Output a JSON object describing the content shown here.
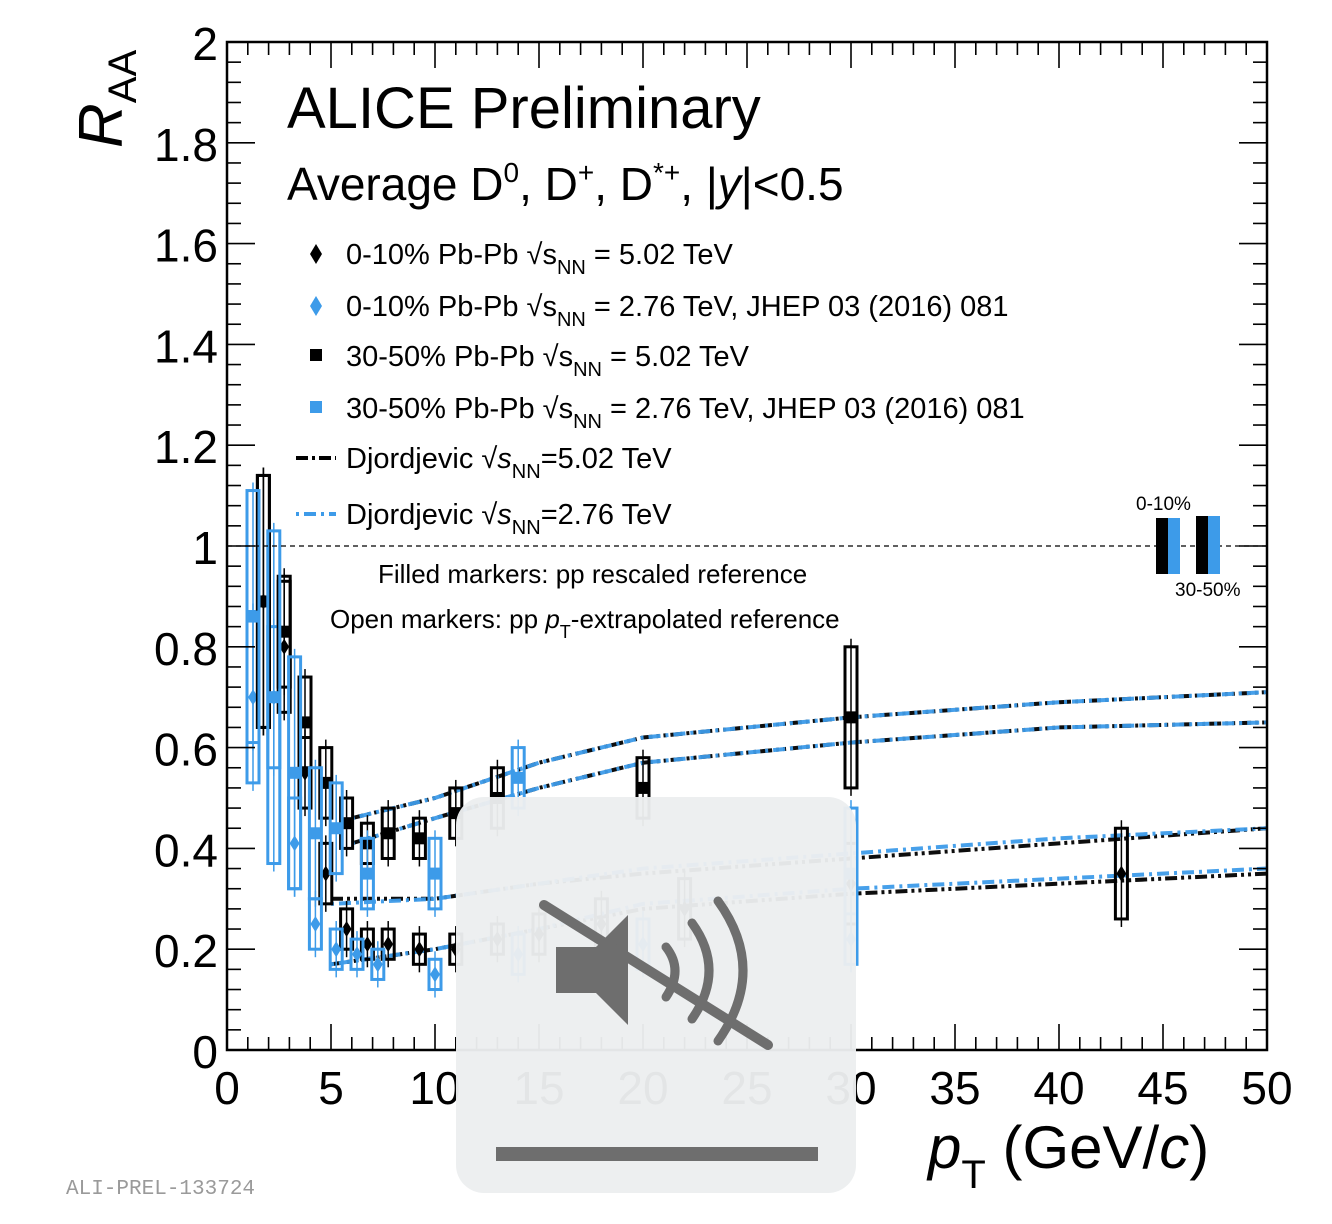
{
  "chart_data": {
    "type": "scatter",
    "title": "ALICE Preliminary",
    "subtitle": {
      "main": "Average D",
      "sup1": "0",
      "sep1": ", D",
      "sup2": "+",
      "sep2": ", D",
      "sup3": "*+",
      "sep3": ", |",
      "var": "y",
      "tail": "|<0.5"
    },
    "xlabel": {
      "var": "p",
      "sub": "T",
      "unit_open": " (GeV/",
      "unit_var": "c",
      "unit_close": ")"
    },
    "ylabel": {
      "var": "R",
      "sub": "AA"
    },
    "xlim": [
      0,
      50
    ],
    "ylim": [
      0,
      2
    ],
    "x_ticks": [
      "0",
      "5",
      "10",
      "15",
      "20",
      "25",
      "30",
      "35",
      "40",
      "45",
      "50"
    ],
    "y_ticks": [
      "0",
      "0.2",
      "0.4",
      "0.6",
      "0.8",
      "1",
      "1.2",
      "1.4",
      "1.6",
      "1.8",
      "2"
    ],
    "reference_line": 1,
    "legend": [
      {
        "marker": "diamond",
        "color": "#000000",
        "label": "0-10% Pb-Pb",
        "energy": " = 5.02 TeV",
        "ref": ""
      },
      {
        "marker": "diamond",
        "color": "#3d9be9",
        "label": "0-10% Pb-Pb",
        "energy": " = 2.76 TeV, JHEP 03 (2016) 081",
        "ref": ""
      },
      {
        "marker": "square",
        "color": "#000000",
        "label": "30-50% Pb-Pb",
        "energy": " = 5.02 TeV",
        "ref": ""
      },
      {
        "marker": "square",
        "color": "#3d9be9",
        "label": "30-50% Pb-Pb",
        "energy": " = 2.76 TeV, JHEP 03 (2016) 081",
        "ref": ""
      },
      {
        "marker": "line",
        "color": "#000000",
        "label": "Djordjevic",
        "energy": "=5.02 TeV",
        "ref": ""
      },
      {
        "marker": "line",
        "color": "#3d9be9",
        "label": "Djordjevic",
        "energy": "=2.76 TeV",
        "ref": ""
      }
    ],
    "sqrt_label": {
      "s": "s",
      "sub": "NN"
    },
    "notes": [
      "Filled markers: pp rescaled reference",
      "Open markers: pp",
      "-extrapolated reference"
    ],
    "norm_box_labels": [
      "0-10%",
      "30-50%"
    ],
    "series": [
      {
        "name": "0-10% Pb-Pb 5.02 TeV",
        "color": "#000000",
        "marker": "diamond",
        "x": [
          1.5,
          2.5,
          3.5,
          4.5,
          5.5,
          6.5,
          7.5,
          9,
          11,
          13,
          15,
          18,
          22,
          30,
          43
        ],
        "y": [
          0.89,
          0.8,
          0.55,
          0.35,
          0.24,
          0.21,
          0.21,
          0.2,
          0.2,
          0.22,
          0.23,
          0.25,
          0.28,
          0.33,
          0.35
        ],
        "sys": [
          0.25,
          0.13,
          0.07,
          0.06,
          0.04,
          0.03,
          0.03,
          0.03,
          0.03,
          0.03,
          0.04,
          0.05,
          0.06,
          0.08,
          0.09
        ]
      },
      {
        "name": "0-10% Pb-Pb 2.76 TeV",
        "color": "#3d9be9",
        "marker": "diamond",
        "x": [
          1.5,
          2.5,
          3.5,
          4.5,
          5.5,
          6.5,
          7.5,
          10,
          14,
          20,
          30
        ],
        "y": [
          0.7,
          0.7,
          0.41,
          0.25,
          0.2,
          0.19,
          0.17,
          0.15,
          0.19,
          0.21,
          0.22
        ],
        "sys": [
          0.17,
          0.14,
          0.09,
          0.05,
          0.04,
          0.03,
          0.03,
          0.03,
          0.04,
          0.05,
          0.05
        ]
      },
      {
        "name": "30-50% Pb-Pb 5.02 TeV",
        "color": "#000000",
        "marker": "square",
        "x": [
          1.5,
          2.5,
          3.5,
          4.5,
          5.5,
          6.5,
          7.5,
          9,
          11,
          13,
          20,
          30
        ],
        "y": [
          0.89,
          0.83,
          0.65,
          0.53,
          0.45,
          0.41,
          0.43,
          0.42,
          0.47,
          0.5,
          0.52,
          0.66
        ],
        "sys": [
          0.25,
          0.11,
          0.09,
          0.07,
          0.05,
          0.04,
          0.05,
          0.04,
          0.05,
          0.06,
          0.06,
          0.14
        ]
      },
      {
        "name": "30-50% Pb-Pb 2.76 TeV",
        "color": "#3d9be9",
        "marker": "square",
        "x": [
          1.5,
          2.5,
          3.5,
          4.5,
          5.5,
          7,
          10,
          14,
          30
        ],
        "y": [
          0.86,
          0.7,
          0.55,
          0.43,
          0.44,
          0.35,
          0.35,
          0.54,
          0.35
        ],
        "sys": [
          0.25,
          0.33,
          0.23,
          0.13,
          0.09,
          0.07,
          0.07,
          0.06,
          0.13
        ]
      }
    ],
    "models": [
      {
        "name": "Djordjevic 5.02 TeV upper",
        "color": "#000000",
        "x": [
          6,
          10,
          15,
          20,
          30,
          40,
          50
        ],
        "y": [
          0.46,
          0.5,
          0.57,
          0.62,
          0.66,
          0.69,
          0.71
        ]
      },
      {
        "name": "Djordjevic 5.02 TeV lower",
        "color": "#000000",
        "x": [
          6,
          10,
          15,
          20,
          30,
          40,
          50
        ],
        "y": [
          0.41,
          0.46,
          0.52,
          0.57,
          0.61,
          0.64,
          0.65
        ]
      },
      {
        "name": "Djordjevic 2.76 TeV upper",
        "color": "#3d9be9",
        "x": [
          6,
          10,
          15,
          20,
          30,
          40,
          50
        ],
        "y": [
          0.46,
          0.5,
          0.57,
          0.62,
          0.66,
          0.69,
          0.71
        ]
      },
      {
        "name": "Djordjevic 2.76 TeV lower",
        "color": "#3d9be9",
        "x": [
          6,
          10,
          15,
          20,
          30,
          40,
          50
        ],
        "y": [
          0.41,
          0.46,
          0.52,
          0.57,
          0.61,
          0.64,
          0.65
        ]
      },
      {
        "name": "Djordjevic 0-10% 5.02 TeV upper",
        "color": "#000000",
        "x": [
          5,
          10,
          15,
          20,
          30,
          40,
          50
        ],
        "y": [
          0.3,
          0.3,
          0.33,
          0.35,
          0.38,
          0.41,
          0.44
        ]
      },
      {
        "name": "Djordjevic 0-10% 5.02 TeV lower",
        "color": "#000000",
        "x": [
          5,
          10,
          15,
          20,
          30,
          40,
          50
        ],
        "y": [
          0.17,
          0.2,
          0.24,
          0.28,
          0.31,
          0.33,
          0.35
        ]
      },
      {
        "name": "Djordjevic 0-10% 2.76 TeV upper",
        "color": "#3d9be9",
        "x": [
          5,
          10,
          15,
          20,
          30,
          40,
          50
        ],
        "y": [
          0.29,
          0.3,
          0.33,
          0.36,
          0.39,
          0.42,
          0.44
        ]
      },
      {
        "name": "Djordjevic 0-10% 2.76 TeV lower",
        "color": "#3d9be9",
        "x": [
          5,
          10,
          15,
          20,
          30,
          40,
          50
        ],
        "y": [
          0.17,
          0.2,
          0.24,
          0.29,
          0.32,
          0.34,
          0.36
        ]
      }
    ],
    "footer": "ALI-PREL-133724"
  },
  "overlay": {
    "icon": "speaker-muted-icon"
  }
}
